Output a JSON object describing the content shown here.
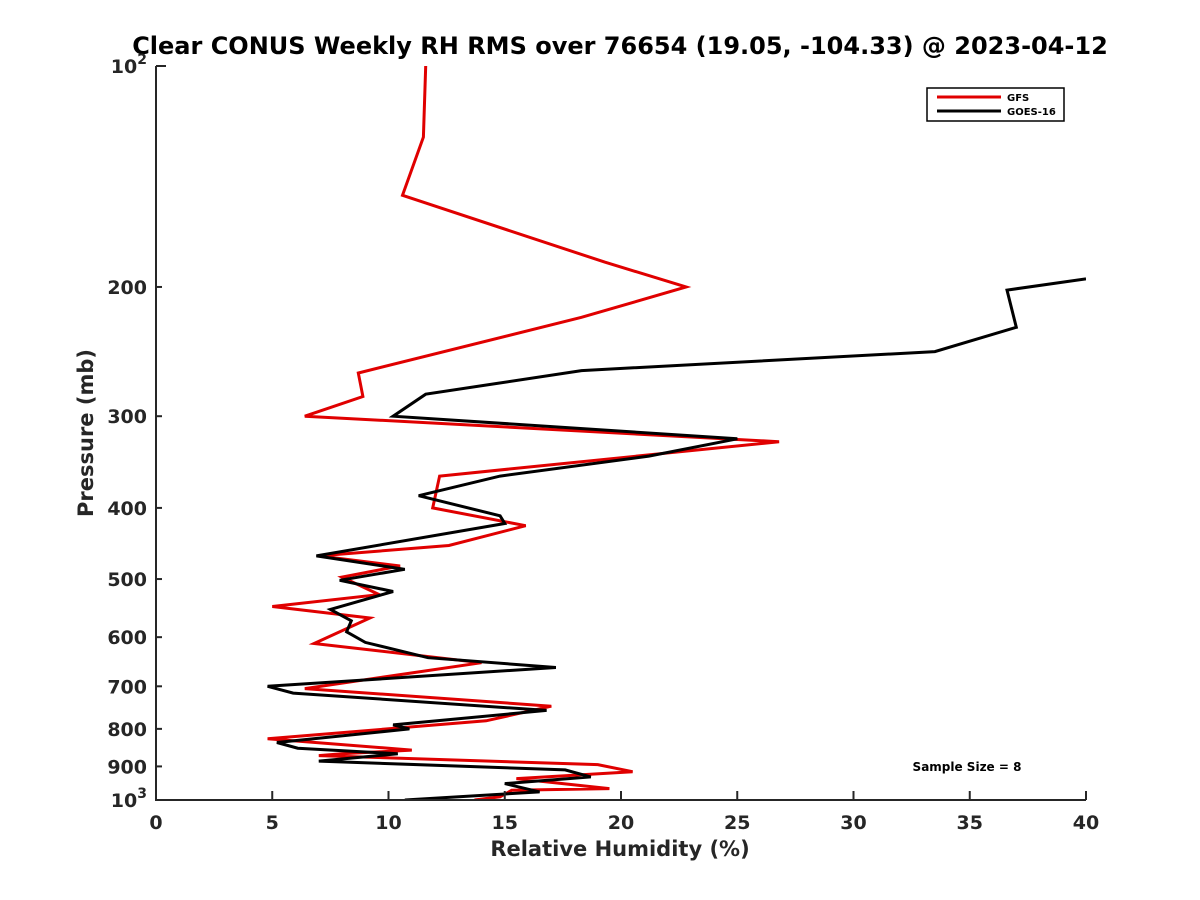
{
  "chart_data": {
    "type": "line",
    "title": "Clear CONUS Weekly RH RMS over 76654 (19.05, -104.33) @ 2023-04-12",
    "xlabel": "Relative Humidity (%)",
    "ylabel": "Pressure (mb)",
    "xlim": [
      0,
      40
    ],
    "ylim": [
      100,
      1000
    ],
    "yscale": "log",
    "y_reversed": true,
    "grid": false,
    "x_ticks": [
      0,
      5,
      10,
      15,
      20,
      25,
      30,
      35,
      40
    ],
    "x_tick_labels": [
      "0",
      "5",
      "10",
      "15",
      "20",
      "25",
      "30",
      "35",
      "40"
    ],
    "y_ticks": [
      100,
      200,
      300,
      400,
      500,
      600,
      700,
      800,
      900,
      1000
    ],
    "y_tick_labels": [
      {
        "text": "10",
        "sup": "2"
      },
      {
        "text": "200"
      },
      {
        "text": "300"
      },
      {
        "text": "400"
      },
      {
        "text": "500"
      },
      {
        "text": "600"
      },
      {
        "text": "700"
      },
      {
        "text": "800"
      },
      {
        "text": "900"
      },
      {
        "text": "10",
        "sup": "3"
      }
    ],
    "legend_position": "top-right",
    "series": [
      {
        "name": "GFS",
        "color": "#e00000",
        "points": [
          [
            11.6,
            100
          ],
          [
            11.5,
            125
          ],
          [
            10.6,
            150
          ],
          [
            19.3,
            185
          ],
          [
            22.8,
            200
          ],
          [
            18.3,
            220
          ],
          [
            8.7,
            262
          ],
          [
            8.9,
            282
          ],
          [
            6.4,
            300
          ],
          [
            26.8,
            325
          ],
          [
            12.2,
            362
          ],
          [
            11.9,
            400
          ],
          [
            15.9,
            423
          ],
          [
            12.6,
            450
          ],
          [
            7.0,
            465
          ],
          [
            10.5,
            480
          ],
          [
            8.0,
            497
          ],
          [
            9.6,
            525
          ],
          [
            5.0,
            545
          ],
          [
            9.2,
            565
          ],
          [
            6.8,
            612
          ],
          [
            14.0,
            650
          ],
          [
            6.4,
            705
          ],
          [
            17.0,
            745
          ],
          [
            14.2,
            780
          ],
          [
            4.8,
            825
          ],
          [
            11.0,
            855
          ],
          [
            8.0,
            865
          ],
          [
            7.0,
            870
          ],
          [
            19.0,
            895
          ],
          [
            20.5,
            915
          ],
          [
            15.5,
            935
          ],
          [
            19.5,
            965
          ],
          [
            15.3,
            970
          ],
          [
            14.8,
            990
          ],
          [
            13.7,
            1000
          ]
        ]
      },
      {
        "name": "GOES-16",
        "color": "#000000",
        "points": [
          [
            40.0,
            195
          ],
          [
            36.6,
            202
          ],
          [
            37.0,
            227
          ],
          [
            33.5,
            245
          ],
          [
            18.3,
            260
          ],
          [
            11.6,
            280
          ],
          [
            10.2,
            300
          ],
          [
            25.0,
            322
          ],
          [
            21.2,
            340
          ],
          [
            14.8,
            362
          ],
          [
            11.3,
            385
          ],
          [
            14.8,
            410
          ],
          [
            15.0,
            420
          ],
          [
            6.9,
            465
          ],
          [
            10.7,
            485
          ],
          [
            7.9,
            502
          ],
          [
            10.2,
            520
          ],
          [
            7.5,
            550
          ],
          [
            8.4,
            570
          ],
          [
            8.2,
            590
          ],
          [
            9.0,
            610
          ],
          [
            11.7,
            640
          ],
          [
            17.2,
            660
          ],
          [
            4.8,
            700
          ],
          [
            5.9,
            715
          ],
          [
            16.8,
            755
          ],
          [
            10.2,
            790
          ],
          [
            10.9,
            800
          ],
          [
            5.2,
            835
          ],
          [
            6.1,
            850
          ],
          [
            9.6,
            862
          ],
          [
            10.4,
            865
          ],
          [
            7.0,
            885
          ],
          [
            17.6,
            910
          ],
          [
            18.7,
            930
          ],
          [
            15.0,
            950
          ],
          [
            16.5,
            975
          ],
          [
            10.7,
            1000
          ]
        ]
      }
    ],
    "annotation": "Sample Size = 8"
  }
}
